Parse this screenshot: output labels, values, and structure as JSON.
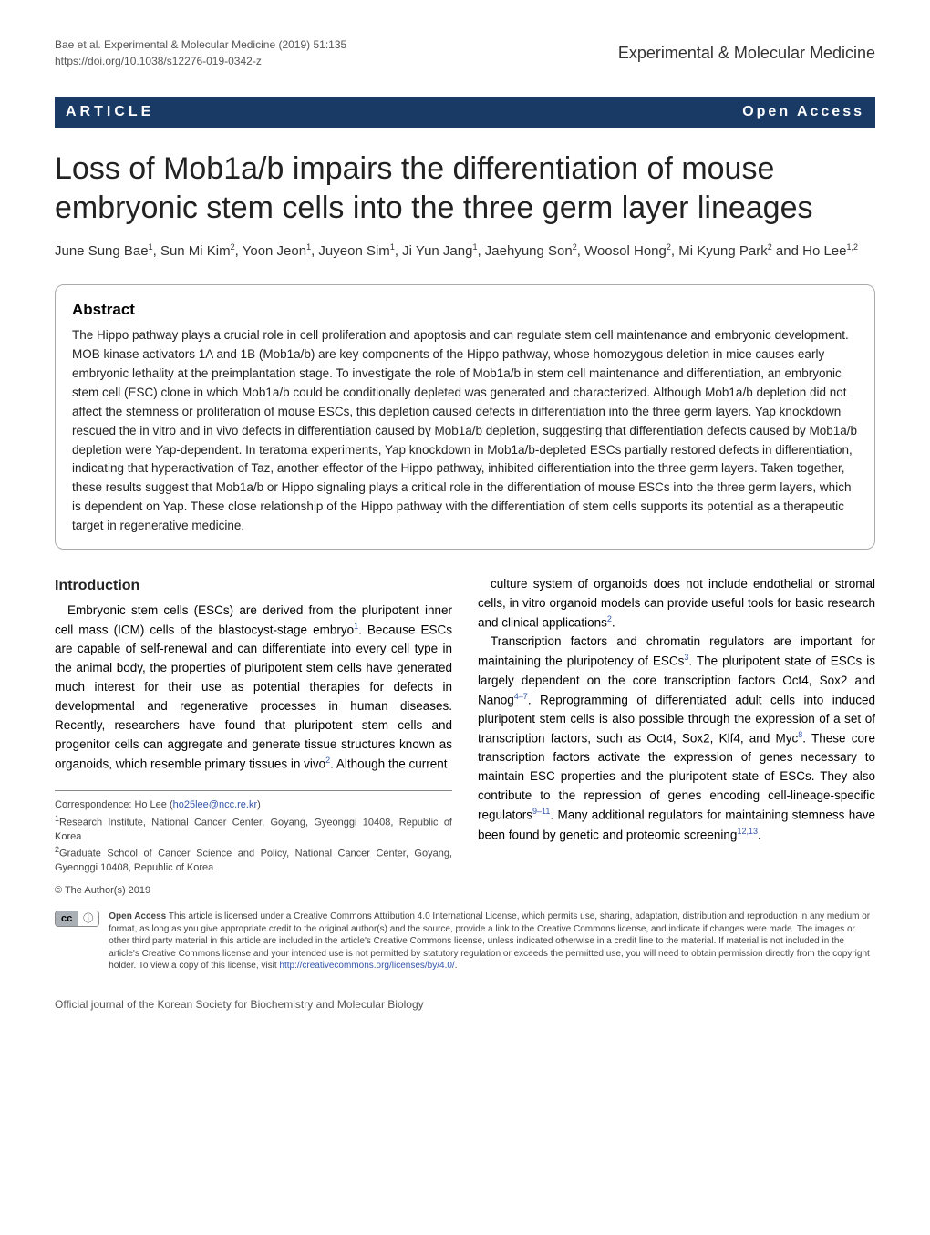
{
  "header": {
    "citation": "Bae et al. Experimental & Molecular Medicine (2019) 51:135",
    "doi": "https://doi.org/10.1038/s12276-019-0342-z",
    "journal": "Experimental & Molecular Medicine"
  },
  "badges": {
    "article": "ARTICLE",
    "open_access": "Open Access"
  },
  "title": "Loss of Mob1a/b impairs the differentiation of mouse embryonic stem cells into the three germ layer lineages",
  "authors_html": "June Sung Bae<sup>1</sup>, Sun Mi Kim<sup>2</sup>, Yoon Jeon<sup>1</sup>, Juyeon Sim<sup>1</sup>, Ji Yun Jang<sup>1</sup>, Jaehyung Son<sup>2</sup>, Woosol Hong<sup>2</sup>, Mi Kyung Park<sup>2</sup> and Ho Lee<sup>1,2</sup>",
  "abstract": {
    "heading": "Abstract",
    "text": "The Hippo pathway plays a crucial role in cell proliferation and apoptosis and can regulate stem cell maintenance and embryonic development. MOB kinase activators 1A and 1B (Mob1a/b) are key components of the Hippo pathway, whose homozygous deletion in mice causes early embryonic lethality at the preimplantation stage. To investigate the role of Mob1a/b in stem cell maintenance and differentiation, an embryonic stem cell (ESC) clone in which Mob1a/b could be conditionally depleted was generated and characterized. Although Mob1a/b depletion did not affect the stemness or proliferation of mouse ESCs, this depletion caused defects in differentiation into the three germ layers. Yap knockdown rescued the in vitro and in vivo defects in differentiation caused by Mob1a/b depletion, suggesting that differentiation defects caused by Mob1a/b depletion were Yap-dependent. In teratoma experiments, Yap knockdown in Mob1a/b-depleted ESCs partially restored defects in differentiation, indicating that hyperactivation of Taz, another effector of the Hippo pathway, inhibited differentiation into the three germ layers. Taken together, these results suggest that Mob1a/b or Hippo signaling plays a critical role in the differentiation of mouse ESCs into the three germ layers, which is dependent on Yap. These close relationship of the Hippo pathway with the differentiation of stem cells supports its potential as a therapeutic target in regenerative medicine."
  },
  "body": {
    "intro_heading": "Introduction",
    "left_p1": "Embryonic stem cells (ESCs) are derived from the pluripotent inner cell mass (ICM) cells of the blastocyst-stage embryo",
    "left_ref1": "1",
    "left_p1b": ". Because ESCs are capable of self-renewal and can differentiate into every cell type in the animal body, the properties of pluripotent stem cells have generated much interest for their use as potential therapies for defects in developmental and regenerative processes in human diseases. Recently, researchers have found that pluripotent stem cells and progenitor cells can aggregate and generate tissue structures known as organoids, which resemble primary tissues in vivo",
    "left_ref2": "2",
    "left_p1c": ". Although the current",
    "right_p1a": "culture system of organoids does not include endothelial or stromal cells, in vitro organoid models can provide useful tools for basic research and clinical applications",
    "right_ref1": "2",
    "right_p1b": ".",
    "right_p2a": "Transcription factors and chromatin regulators are important for maintaining the pluripotency of ESCs",
    "right_ref2": "3",
    "right_p2b": ". The pluripotent state of ESCs is largely dependent on the core transcription factors Oct4, Sox2 and Nanog",
    "right_ref3": "4–7",
    "right_p2c": ". Reprogramming of differentiated adult cells into induced pluripotent stem cells is also possible through the expression of a set of transcription factors, such as Oct4, Sox2, Klf4, and Myc",
    "right_ref4": "8",
    "right_p2d": ". These core transcription factors activate the expression of genes necessary to maintain ESC properties and the pluripotent state of ESCs. They also contribute to the repression of genes encoding cell-lineage-specific regulators",
    "right_ref5": "9–11",
    "right_p2e": ". Many additional regulators for maintaining stemness have been found by genetic and proteomic screening",
    "right_ref6": "12,13",
    "right_p2f": "."
  },
  "correspondence": {
    "label": "Correspondence: Ho Lee (",
    "email": "ho25lee@ncc.re.kr",
    "close": ")",
    "aff1": "Research Institute, National Cancer Center, Goyang, Gyeonggi 10408, Republic of Korea",
    "aff2": "Graduate School of Cancer Science and Policy, National Cancer Center, Goyang, Gyeonggi 10408, Republic of Korea"
  },
  "license": {
    "copyright": "© The Author(s) 2019",
    "cc_left": "cc",
    "cc_right": "ⓘ",
    "bold": "Open Access",
    "text_a": " This article is licensed under a Creative Commons Attribution 4.0 International License, which permits use, sharing, adaptation, distribution and reproduction in any medium or format, as long as you give appropriate credit to the original author(s) and the source, provide a link to the Creative Commons license, and indicate if changes were made. The images or other third party material in this article are included in the article's Creative Commons license, unless indicated otherwise in a credit line to the material. If material is not included in the article's Creative Commons license and your intended use is not permitted by statutory regulation or exceeds the permitted use, you will need to obtain permission directly from the copyright holder. To view a copy of this license, visit ",
    "link": "http://creativecommons.org/licenses/by/4.0/",
    "text_b": "."
  },
  "footer": "Official journal of the Korean Society for Biochemistry and Molecular Biology",
  "colors": {
    "badge_bg": "#1a3a66",
    "link": "#3355aa"
  }
}
